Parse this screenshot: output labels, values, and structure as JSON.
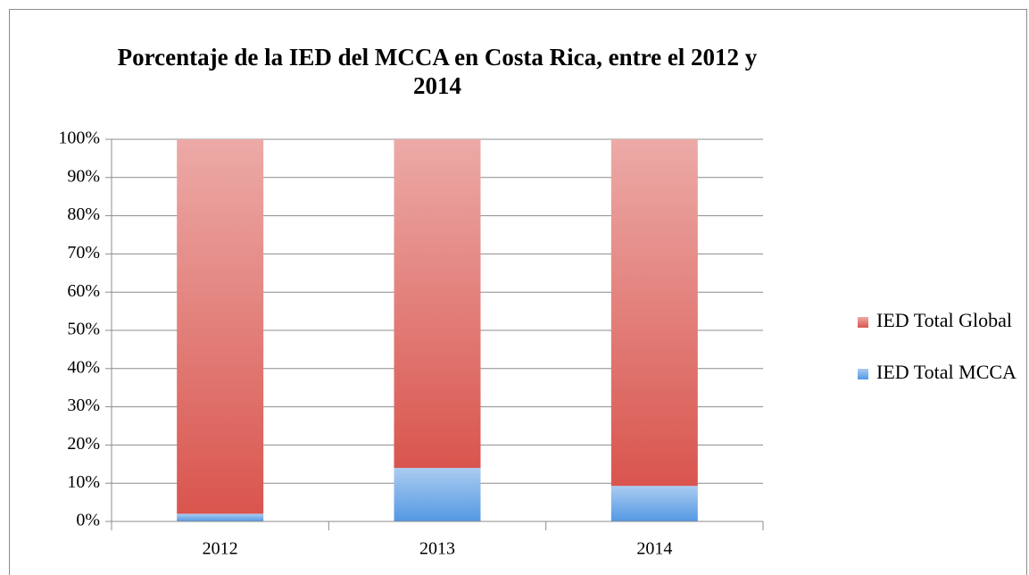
{
  "chart_data": {
    "type": "stacked_bar",
    "title": "Porcentaje de la IED del MCCA en Costa Rica, entre el 2012 y 2014",
    "categories": [
      "2012",
      "2013",
      "2014"
    ],
    "series": [
      {
        "name": "IED Total MCCA",
        "color": "#5498e3",
        "values": [
          2,
          14,
          9.3
        ]
      },
      {
        "name": "IED Total Global",
        "color": "#d9554e",
        "values": [
          98,
          86,
          90.7
        ]
      }
    ],
    "ylim": [
      0,
      100
    ],
    "yticks": [
      {
        "value": 0,
        "label": "0%"
      },
      {
        "value": 10,
        "label": "10%"
      },
      {
        "value": 20,
        "label": "20%"
      },
      {
        "value": 30,
        "label": "30%"
      },
      {
        "value": 40,
        "label": "40%"
      },
      {
        "value": 50,
        "label": "50%"
      },
      {
        "value": 60,
        "label": "60%"
      },
      {
        "value": 70,
        "label": "70%"
      },
      {
        "value": 80,
        "label": "80%"
      },
      {
        "value": 90,
        "label": "90%"
      },
      {
        "value": 100,
        "label": "100%"
      }
    ],
    "grid": true,
    "legend": "right"
  }
}
